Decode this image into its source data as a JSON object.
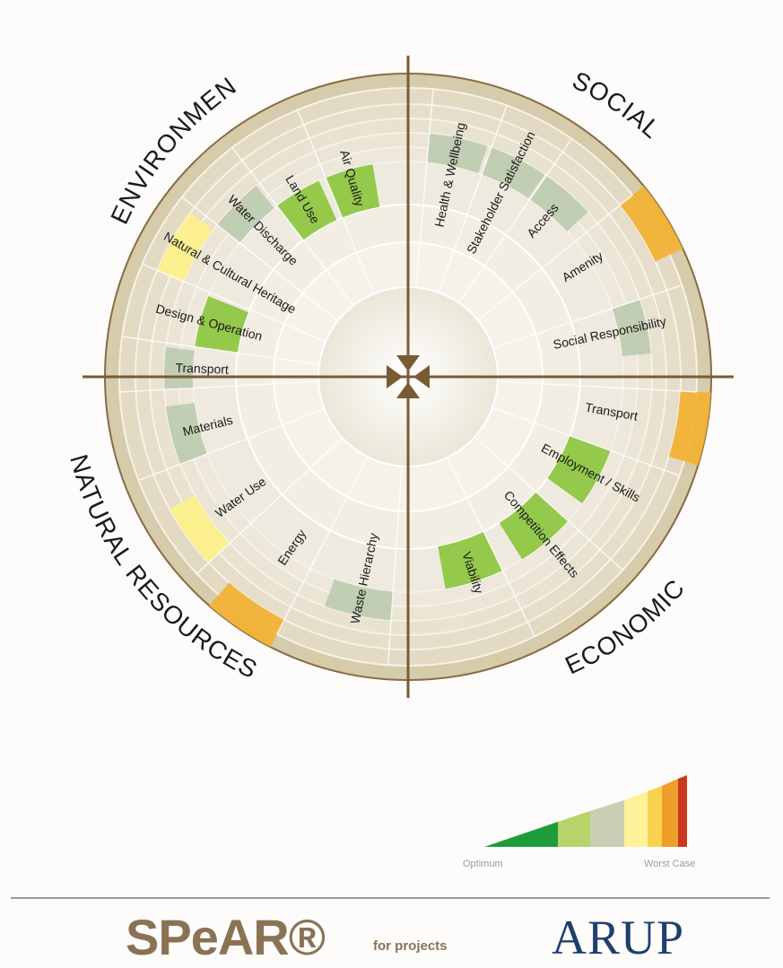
{
  "diagram": {
    "quadrants": {
      "environment": "ENVIRONMENT",
      "social": "SOCIAL",
      "economic": "ECONOMIC",
      "natural_resources": "NATURAL RESOURCES"
    },
    "sectors": [
      {
        "label": "Air Quality",
        "score": 2
      },
      {
        "label": "Land Use",
        "score": 1
      },
      {
        "label": "Water Discharge",
        "score": 3
      },
      {
        "label": "Natural & Cultural Heritage",
        "score": 6
      },
      {
        "label": "Design & Operation",
        "score": 2
      },
      {
        "label": "Transport",
        "score": 3
      },
      {
        "label": "Health & Wellbeing",
        "score": 3
      },
      {
        "label": "Stakeholder Satisfaction",
        "score": 3
      },
      {
        "label": "Access",
        "score": 3
      },
      {
        "label": "Amenity",
        "score": 8
      },
      {
        "label": "Social Responsibility",
        "score": 3
      },
      {
        "label": "Transport",
        "score": 8
      },
      {
        "label": "Employment / Skills",
        "score": 2
      },
      {
        "label": "Competition Effects",
        "score": 2
      },
      {
        "label": "Viability",
        "score": 2
      },
      {
        "label": "Waste Hierarchy",
        "score": 3
      },
      {
        "label": "Energy",
        "score": 8
      },
      {
        "label": "Water Use",
        "score": 6
      },
      {
        "label": "Materials",
        "score": 3
      }
    ],
    "colors": {
      "ring_bg": "#e9e3d2",
      "ring_line": "#ffffff",
      "outer_band": "#d4c8a6",
      "axis": "#7a5a35",
      "optimum_green": "#8cc63f",
      "light_green": "#c6d98a",
      "grey_green": "#bccbb0",
      "pale_yellow": "#fdf08a",
      "yellow": "#fbd94a",
      "orange": "#f2b233",
      "red": "#c8391e",
      "dark_green": "#1e9c3a"
    }
  },
  "legend": {
    "min_label": "Optimum",
    "max_label": "Worst Case"
  },
  "branding": {
    "product": "SPeAR®",
    "product_sub": "for projects",
    "company": "ARUP"
  }
}
